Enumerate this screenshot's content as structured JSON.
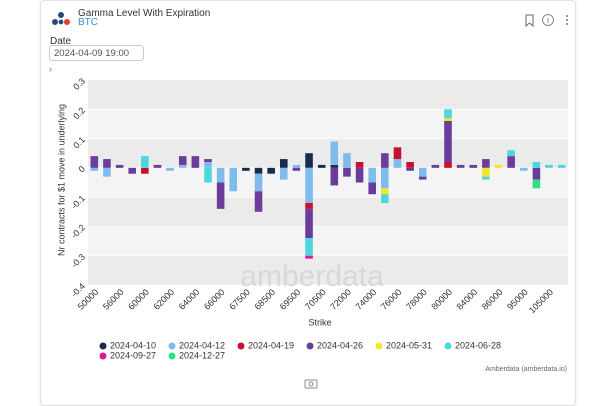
{
  "header": {
    "title": "Gamma Level With Expiration",
    "subtitle": "BTC"
  },
  "date_picker": {
    "label": "Date",
    "value": "2024-04-09 19:00"
  },
  "chart_data": {
    "type": "bar",
    "stacked": true,
    "x_label": "Strike",
    "y_label": "Nr contracts for $1 move in underlying",
    "watermark": "amberdata",
    "credit": "Amberdata (amberdata.io)",
    "categories": [
      "50000",
      null,
      "56000",
      null,
      "60000",
      null,
      "62000",
      null,
      "64000",
      null,
      "66000",
      null,
      "67500",
      null,
      "68500",
      null,
      "69500",
      null,
      "70500",
      null,
      "72000",
      null,
      "74000",
      null,
      "76000",
      null,
      "78000",
      null,
      "80000",
      null,
      "84000",
      null,
      "86000",
      null,
      "95000",
      null,
      "105000",
      null
    ],
    "ylim": [
      -0.4,
      0.3
    ],
    "yticks": [
      0.3,
      0.2,
      0.1,
      0,
      -0.1,
      -0.2,
      -0.3,
      -0.4
    ],
    "grid": true,
    "legend": "bottom",
    "series": [
      {
        "name": "2024-04-10",
        "color": "#1c2b4d",
        "values": [
          0,
          0,
          0,
          0,
          0,
          0,
          0,
          0,
          0,
          0,
          0,
          0,
          -0.01,
          -0.02,
          -0.02,
          0.03,
          0,
          0.05,
          0.01,
          0.01,
          0,
          0,
          0,
          0,
          0,
          0,
          0,
          0,
          0,
          0,
          0,
          0,
          0,
          0,
          0,
          0,
          0,
          0
        ]
      },
      {
        "name": "2024-04-12",
        "color": "#7fbcec",
        "values": [
          -0.01,
          -0.03,
          0,
          0,
          0,
          0,
          -0.01,
          0.01,
          0,
          0.02,
          -0.05,
          -0.08,
          0,
          -0.06,
          0,
          -0.04,
          0.01,
          -0.12,
          0,
          0.08,
          0.05,
          0,
          -0.05,
          -0.07,
          0.03,
          0,
          -0.03,
          0,
          0,
          0,
          0,
          0,
          0,
          0,
          -0.01,
          0,
          0,
          0
        ]
      },
      {
        "name": "2024-04-19",
        "color": "#c8102e",
        "values": [
          0,
          0,
          0,
          0,
          -0.02,
          0,
          0,
          0,
          0,
          0,
          0,
          0,
          0,
          0,
          0,
          0,
          0,
          -0.02,
          0,
          0,
          0,
          0.02,
          0,
          0,
          0.04,
          0.02,
          0,
          0,
          0.02,
          0,
          0,
          0,
          0,
          0,
          0,
          0,
          0,
          0
        ]
      },
      {
        "name": "2024-04-26",
        "color": "#6a3d9a",
        "values": [
          0.04,
          0.03,
          0.01,
          -0.02,
          0,
          0.01,
          0,
          0.03,
          0.04,
          0.01,
          -0.09,
          0,
          0,
          -0.07,
          0,
          0,
          -0.01,
          -0.1,
          0,
          -0.06,
          -0.03,
          -0.05,
          -0.04,
          0.05,
          0,
          -0.01,
          -0.01,
          0.01,
          0.14,
          0.01,
          0.01,
          0.03,
          0,
          0.04,
          0,
          -0.04,
          0,
          0
        ]
      },
      {
        "name": "2024-05-31",
        "color": "#f2e62a",
        "values": [
          0,
          0,
          0,
          0,
          0,
          0,
          0,
          0,
          0,
          0,
          0,
          0,
          0,
          0,
          0,
          0,
          0,
          0,
          0,
          0,
          0,
          0,
          0,
          -0.02,
          0,
          0,
          0,
          0,
          0.01,
          0,
          0,
          -0.03,
          0.01,
          0,
          0,
          0,
          0,
          0
        ]
      },
      {
        "name": "2024-06-28",
        "color": "#4cd6de",
        "values": [
          0,
          0,
          0,
          0,
          0.04,
          0,
          0,
          0,
          0,
          -0.05,
          0,
          0,
          0,
          0,
          0,
          0,
          0,
          -0.06,
          0,
          0,
          0,
          0,
          0,
          -0.03,
          0,
          0,
          0,
          0,
          0.03,
          0,
          0,
          -0.01,
          0,
          0.02,
          0,
          0.02,
          0.01,
          0.01
        ]
      },
      {
        "name": "2024-09-27",
        "color": "#e0179a",
        "values": [
          0,
          0,
          0,
          0,
          0,
          0,
          0,
          0,
          0,
          0,
          0,
          0,
          0,
          0,
          0,
          0,
          0,
          -0.01,
          0,
          0,
          0,
          0,
          0,
          0,
          0,
          0,
          0,
          0,
          0,
          0,
          0,
          0,
          0,
          0,
          0,
          0,
          0,
          0
        ]
      },
      {
        "name": "2024-12-27",
        "color": "#2ee08a",
        "values": [
          0,
          0,
          0,
          0,
          0,
          0,
          0,
          0,
          0,
          0,
          0,
          0,
          0,
          0,
          0,
          0,
          0,
          0,
          0,
          0,
          0,
          0,
          0,
          0,
          0,
          0,
          0,
          0,
          0,
          0,
          0,
          0,
          0,
          0,
          0,
          -0.03,
          0,
          0
        ]
      }
    ]
  }
}
